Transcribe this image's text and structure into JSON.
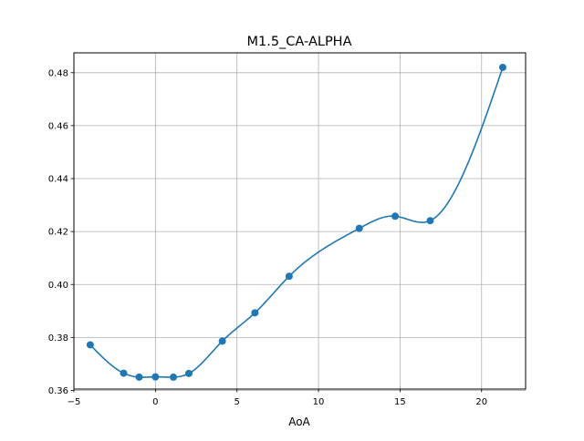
{
  "chart_data": {
    "type": "line",
    "title": "M1.5_CA-ALPHA",
    "xlabel": "AoA",
    "ylabel": "",
    "xlim": [
      -5.0,
      22.7
    ],
    "ylim": [
      0.3605,
      0.4875
    ],
    "xticks": [
      -5,
      0,
      5,
      10,
      15,
      20
    ],
    "yticks": [
      0.36,
      0.38,
      0.4,
      0.42,
      0.44,
      0.46,
      0.48
    ],
    "xtick_labels": [
      "−5",
      "0",
      "5",
      "10",
      "15",
      "20"
    ],
    "ytick_labels": [
      "0.36",
      "0.38",
      "0.40",
      "0.42",
      "0.44",
      "0.46",
      "0.48"
    ],
    "grid": true,
    "series": [
      {
        "color": "#1f77b4",
        "marker": "circle",
        "interpolation": "smooth-spline",
        "x": [
          -4.0,
          -1.95,
          -1.0,
          0.0,
          1.1,
          2.05,
          4.1,
          6.1,
          8.2,
          12.5,
          14.7,
          16.85,
          21.3
        ],
        "y": [
          0.3772,
          0.3665,
          0.365,
          0.3651,
          0.365,
          0.3664,
          0.3786,
          0.3893,
          0.4031,
          0.4212,
          0.4258,
          0.4241,
          0.482
        ]
      }
    ]
  }
}
